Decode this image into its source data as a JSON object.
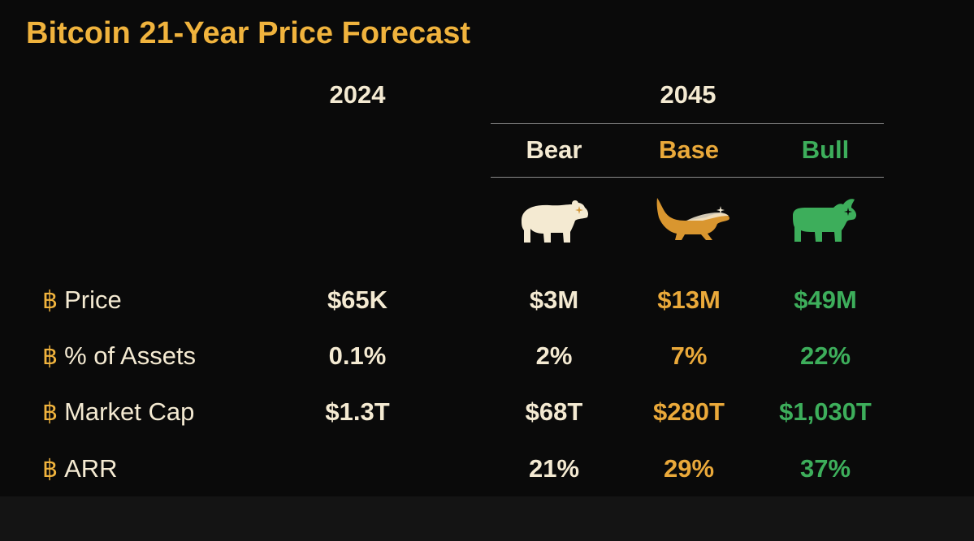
{
  "title": "Bitcoin 21-Year Price Forecast",
  "headers": {
    "year_now": "2024",
    "year_future": "2045"
  },
  "scenarios": [
    {
      "label": "Bear",
      "color": "#F4EAD2",
      "icon": "bear-icon"
    },
    {
      "label": "Base",
      "color": "#EAA93A",
      "icon": "honey-badger-icon"
    },
    {
      "label": "Bull",
      "color": "#3DAE5B",
      "icon": "bull-icon"
    }
  ],
  "bullet_symbol": "฿",
  "rows": [
    {
      "label": "Price",
      "y2024": "$65K",
      "bear": "$3M",
      "base": "$13M",
      "bull": "$49M"
    },
    {
      "label": "% of Assets",
      "y2024": "0.1%",
      "bear": "2%",
      "base": "7%",
      "bull": "22%"
    },
    {
      "label": "Market Cap",
      "y2024": "$1.3T",
      "bear": "$68T",
      "base": "$280T",
      "bull": "$1,030T"
    },
    {
      "label": "ARR",
      "y2024": "",
      "bear": "21%",
      "base": "29%",
      "bull": "37%"
    }
  ],
  "colors": {
    "accent": "#F0B33D",
    "text": "#F4EAD2",
    "background": "#0a0a0a"
  }
}
